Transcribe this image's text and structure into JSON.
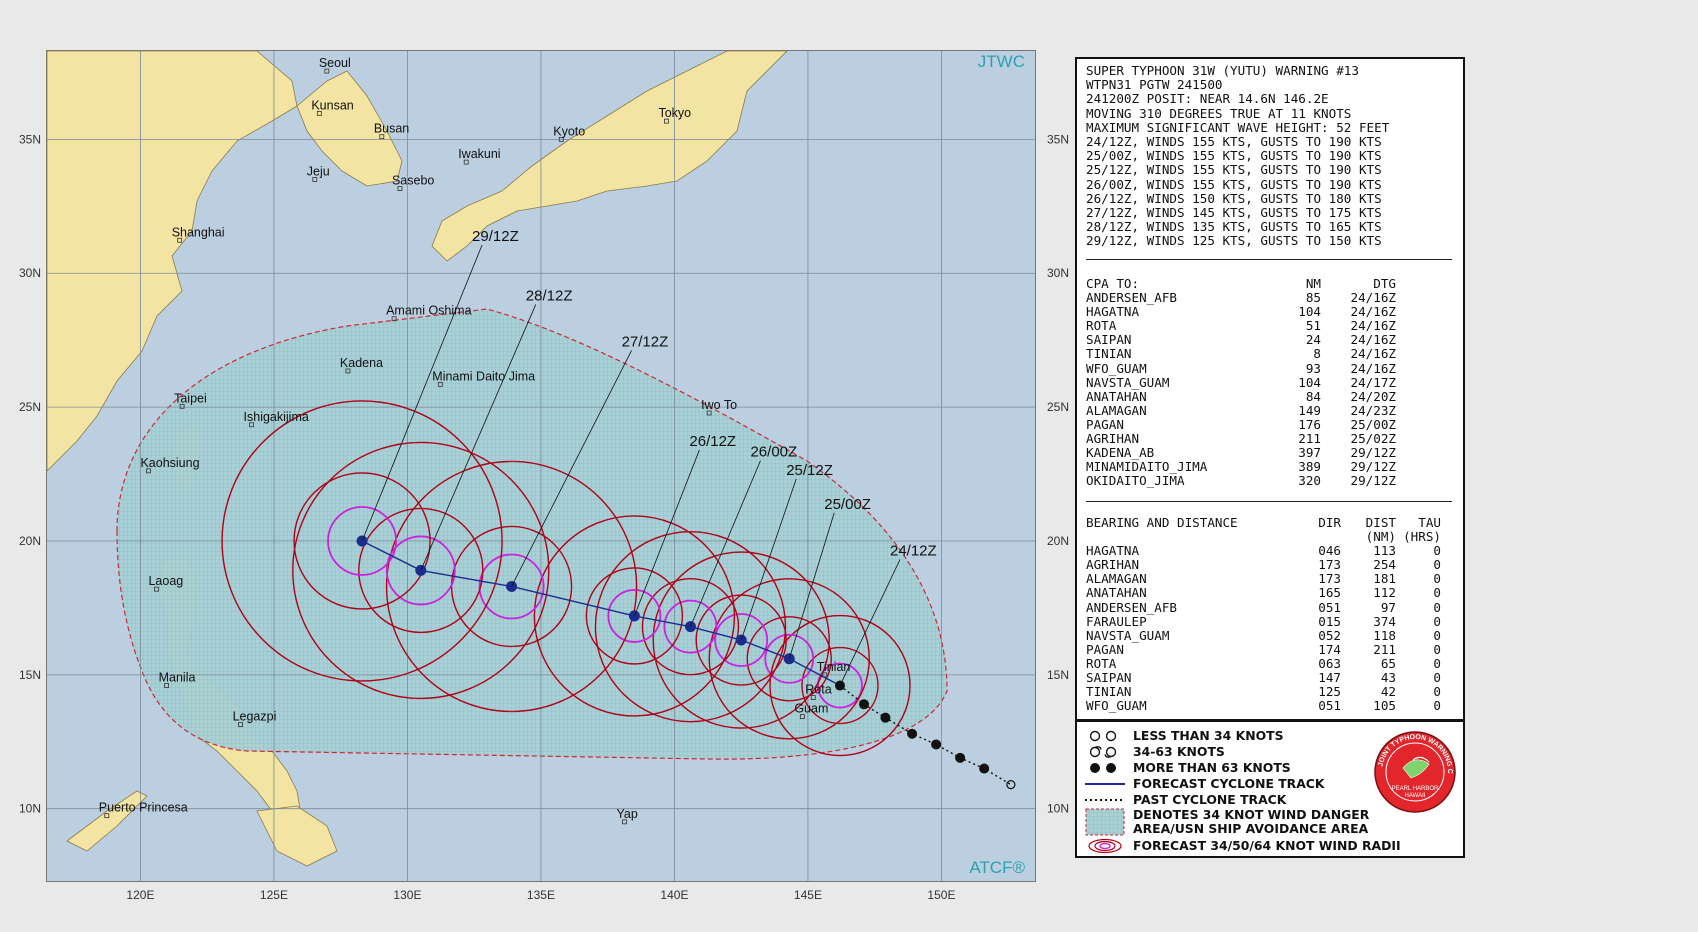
{
  "header_lines": [
    "SUPER TYPHOON 31W (YUTU) WARNING #13",
    "WTPN31 PGTW 241500",
    "241200Z POSIT: NEAR 14.6N 146.2E",
    "MOVING 310 DEGREES TRUE AT 11 KNOTS",
    "MAXIMUM SIGNIFICANT WAVE HEIGHT: 52 FEET",
    "24/12Z, WINDS 155 KTS, GUSTS TO 190 KTS",
    "25/00Z, WINDS 155 KTS, GUSTS TO 190 KTS",
    "25/12Z, WINDS 155 KTS, GUSTS TO 190 KTS",
    "26/00Z, WINDS 155 KTS, GUSTS TO 190 KTS",
    "26/12Z, WINDS 150 KTS, GUSTS TO 180 KTS",
    "27/12Z, WINDS 145 KTS, GUSTS TO 175 KTS",
    "28/12Z, WINDS 135 KTS, GUSTS TO 165 KTS",
    "29/12Z, WINDS 125 KTS, GUSTS TO 150 KTS"
  ],
  "cpa": {
    "h1": "CPA TO:",
    "h2": "NM",
    "h3": "DTG",
    "rows": [
      {
        "place": "ANDERSEN_AFB",
        "nm": "85",
        "dtg": "24/16Z"
      },
      {
        "place": "HAGATNA",
        "nm": "104",
        "dtg": "24/16Z"
      },
      {
        "place": "ROTA",
        "nm": "51",
        "dtg": "24/16Z"
      },
      {
        "place": "SAIPAN",
        "nm": "24",
        "dtg": "24/16Z"
      },
      {
        "place": "TINIAN",
        "nm": "8",
        "dtg": "24/16Z"
      },
      {
        "place": "WFO_GUAM",
        "nm": "93",
        "dtg": "24/16Z"
      },
      {
        "place": "NAVSTA_GUAM",
        "nm": "104",
        "dtg": "24/17Z"
      },
      {
        "place": "ANATAHAN",
        "nm": "84",
        "dtg": "24/20Z"
      },
      {
        "place": "ALAMAGAN",
        "nm": "149",
        "dtg": "24/23Z"
      },
      {
        "place": "PAGAN",
        "nm": "176",
        "dtg": "25/00Z"
      },
      {
        "place": "AGRIHAN",
        "nm": "211",
        "dtg": "25/02Z"
      },
      {
        "place": "KADENA_AB",
        "nm": "397",
        "dtg": "29/12Z"
      },
      {
        "place": "MINAMIDAITO_JIMA",
        "nm": "389",
        "dtg": "29/12Z"
      },
      {
        "place": "OKIDAITO_JIMA",
        "nm": "320",
        "dtg": "29/12Z"
      }
    ]
  },
  "bearing": {
    "h1": "BEARING AND DISTANCE",
    "h2": "DIR",
    "h3": "DIST",
    "h3b": "(NM)",
    "h4": "TAU",
    "h4b": "(HRS)",
    "rows": [
      {
        "place": "HAGATNA",
        "dir": "046",
        "dist": "113",
        "tau": "0"
      },
      {
        "place": "AGRIHAN",
        "dir": "173",
        "dist": "254",
        "tau": "0"
      },
      {
        "place": "ALAMAGAN",
        "dir": "173",
        "dist": "181",
        "tau": "0"
      },
      {
        "place": "ANATAHAN",
        "dir": "165",
        "dist": "112",
        "tau": "0"
      },
      {
        "place": "ANDERSEN_AFB",
        "dir": "051",
        "dist": "97",
        "tau": "0"
      },
      {
        "place": "FARAULEP",
        "dir": "015",
        "dist": "374",
        "tau": "0"
      },
      {
        "place": "NAVSTA_GUAM",
        "dir": "052",
        "dist": "118",
        "tau": "0"
      },
      {
        "place": "PAGAN",
        "dir": "174",
        "dist": "211",
        "tau": "0"
      },
      {
        "place": "ROTA",
        "dir": "063",
        "dist": "65",
        "tau": "0"
      },
      {
        "place": "SAIPAN",
        "dir": "147",
        "dist": "43",
        "tau": "0"
      },
      {
        "place": "TINIAN",
        "dir": "125",
        "dist": "42",
        "tau": "0"
      },
      {
        "place": "WFO_GUAM",
        "dir": "051",
        "dist": "105",
        "tau": "0"
      }
    ]
  },
  "legend": {
    "less34": "LESS THAN 34 KNOTS",
    "k34_63": "34-63 KNOTS",
    "more63": "MORE THAN 63 KNOTS",
    "forecast_track": "FORECAST CYCLONE TRACK",
    "past_track": "PAST CYCLONE TRACK",
    "danger1": "DENOTES 34 KNOT WIND DANGER",
    "danger2": "AREA/USN SHIP AVOIDANCE AREA",
    "radii": "FORECAST 34/50/64 KNOT WIND RADII"
  },
  "seal": {
    "ring_text": "JOINT TYPHOON WARNING CENTER",
    "line1": "PEARL HARBOR",
    "line2": "HAWAII"
  },
  "map": {
    "jtwc": "JTWC",
    "atcf": "ATCF®",
    "lat_labels": [
      "35N",
      "30N",
      "25N",
      "20N",
      "15N",
      "10N"
    ],
    "lon_labels": [
      "120E",
      "125E",
      "130E",
      "135E",
      "140E",
      "145E",
      "150E"
    ],
    "cities": [
      {
        "name": "Seoul",
        "lon": 126.98,
        "lat": 37.55
      },
      {
        "name": "Kunsan",
        "lon": 126.7,
        "lat": 35.97
      },
      {
        "name": "Busan",
        "lon": 129.04,
        "lat": 35.1
      },
      {
        "name": "Jeju",
        "lon": 126.53,
        "lat": 33.5
      },
      {
        "name": "Sasebo",
        "lon": 129.72,
        "lat": 33.16
      },
      {
        "name": "Iwakuni",
        "lon": 132.2,
        "lat": 34.15
      },
      {
        "name": "Kyoto",
        "lon": 135.76,
        "lat": 35.0
      },
      {
        "name": "Tokyo",
        "lon": 139.7,
        "lat": 35.68
      },
      {
        "name": "Shanghai",
        "lon": 121.47,
        "lat": 31.23
      },
      {
        "name": "Amami Oshima",
        "lon": 129.5,
        "lat": 28.3
      },
      {
        "name": "Kadena",
        "lon": 127.77,
        "lat": 26.35
      },
      {
        "name": "Minami Daito Jima",
        "lon": 131.23,
        "lat": 25.85
      },
      {
        "name": "Taipei",
        "lon": 121.56,
        "lat": 25.03
      },
      {
        "name": "Ishigakijima",
        "lon": 124.16,
        "lat": 24.34
      },
      {
        "name": "Iwo To",
        "lon": 141.3,
        "lat": 24.78
      },
      {
        "name": "Kaohsiung",
        "lon": 120.3,
        "lat": 22.62
      },
      {
        "name": "Laoag",
        "lon": 120.6,
        "lat": 18.2
      },
      {
        "name": "Manila",
        "lon": 120.98,
        "lat": 14.6
      },
      {
        "name": "Legazpi",
        "lon": 123.75,
        "lat": 13.14
      },
      {
        "name": "Puerto Princesa",
        "lon": 118.74,
        "lat": 9.74
      },
      {
        "name": "Yap",
        "lon": 138.13,
        "lat": 9.51
      },
      {
        "name": "Tinian",
        "lon": 145.63,
        "lat": 15.0
      },
      {
        "name": "Rota",
        "lon": 145.2,
        "lat": 14.15
      },
      {
        "name": "Guam",
        "lon": 144.79,
        "lat": 13.44
      }
    ],
    "forecast": [
      {
        "label": "24/12Z",
        "lon": 146.2,
        "lat": 14.6
      },
      {
        "label": "25/00Z",
        "lon": 144.3,
        "lat": 15.6
      },
      {
        "label": "25/12Z",
        "lon": 142.5,
        "lat": 16.3
      },
      {
        "label": "26/00Z",
        "lon": 140.6,
        "lat": 16.8
      },
      {
        "label": "26/12Z",
        "lon": 138.5,
        "lat": 17.2
      },
      {
        "label": "27/12Z",
        "lon": 133.9,
        "lat": 18.3
      },
      {
        "label": "28/12Z",
        "lon": 130.5,
        "lat": 18.9
      },
      {
        "label": "29/12Z",
        "lon": 128.3,
        "lat": 20.0
      }
    ],
    "past": [
      {
        "lon": 147.1,
        "lat": 13.9
      },
      {
        "lon": 147.9,
        "lat": 13.4
      },
      {
        "lon": 148.9,
        "lat": 12.8
      },
      {
        "lon": 149.8,
        "lat": 12.4
      },
      {
        "lon": 150.7,
        "lat": 11.9
      },
      {
        "lon": 151.6,
        "lat": 11.5
      },
      {
        "lon": 152.6,
        "lat": 10.9
      }
    ]
  },
  "colors": {
    "land": "#f3e4a4",
    "sea": "#bccfe0",
    "radii": "#b00018",
    "track": "#1c2c8c",
    "r64": "#cc22dd",
    "danger": "#cc2030"
  }
}
